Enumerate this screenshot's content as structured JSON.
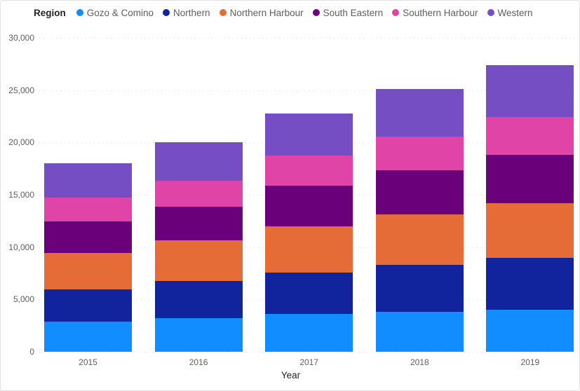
{
  "legend": {
    "title": "Region",
    "items": [
      {
        "label": "Gozo & Comino",
        "color": "#118DFF"
      },
      {
        "label": "Northern",
        "color": "#12239E"
      },
      {
        "label": "Northern Harbour",
        "color": "#E66C37"
      },
      {
        "label": "South Eastern",
        "color": "#6B007B"
      },
      {
        "label": "Southern Harbour",
        "color": "#E044A7"
      },
      {
        "label": "Western",
        "color": "#744EC2"
      }
    ]
  },
  "axes": {
    "y_ticks": [
      "30,000",
      "25,000",
      "20,000",
      "15,000",
      "10,000",
      "5,000",
      "0"
    ],
    "x_ticks": [
      "2015",
      "2016",
      "2017",
      "2018",
      "2019"
    ],
    "x_title": "Year"
  },
  "chart_data": {
    "type": "bar",
    "stacked": true,
    "title": "",
    "categories": [
      "2015",
      "2016",
      "2017",
      "2018",
      "2019"
    ],
    "xlabel": "Year",
    "ylabel": "",
    "ylim": [
      0,
      30000
    ],
    "y_tick_step": 5000,
    "grid": "horizontal-dotted",
    "legend_position": "top",
    "series": [
      {
        "name": "Gozo & Comino",
        "color": "#118DFF",
        "values": [
          2850,
          3200,
          3600,
          3850,
          4050
        ]
      },
      {
        "name": "Northern",
        "color": "#12239E",
        "values": [
          3100,
          3550,
          4000,
          4450,
          4900
        ]
      },
      {
        "name": "Northern Harbour",
        "color": "#E66C37",
        "values": [
          3500,
          3900,
          4400,
          4800,
          5250
        ]
      },
      {
        "name": "South Eastern",
        "color": "#6B007B",
        "values": [
          3000,
          3200,
          3850,
          4250,
          4650
        ]
      },
      {
        "name": "Southern Harbour",
        "color": "#E044A7",
        "values": [
          2300,
          2500,
          2900,
          3200,
          3600
        ]
      },
      {
        "name": "Western",
        "color": "#744EC2",
        "values": [
          3250,
          3700,
          4050,
          4550,
          4950
        ]
      }
    ],
    "stack_totals": [
      18000,
      20050,
      22800,
      25100,
      27400
    ]
  },
  "colors": {
    "background": "#FFFFFF",
    "border": "#E1E1E1",
    "gridline": "#D9D9D9",
    "axis_text": "#605E5C",
    "legend_text": "#605E5C",
    "title_text": "#252423"
  }
}
